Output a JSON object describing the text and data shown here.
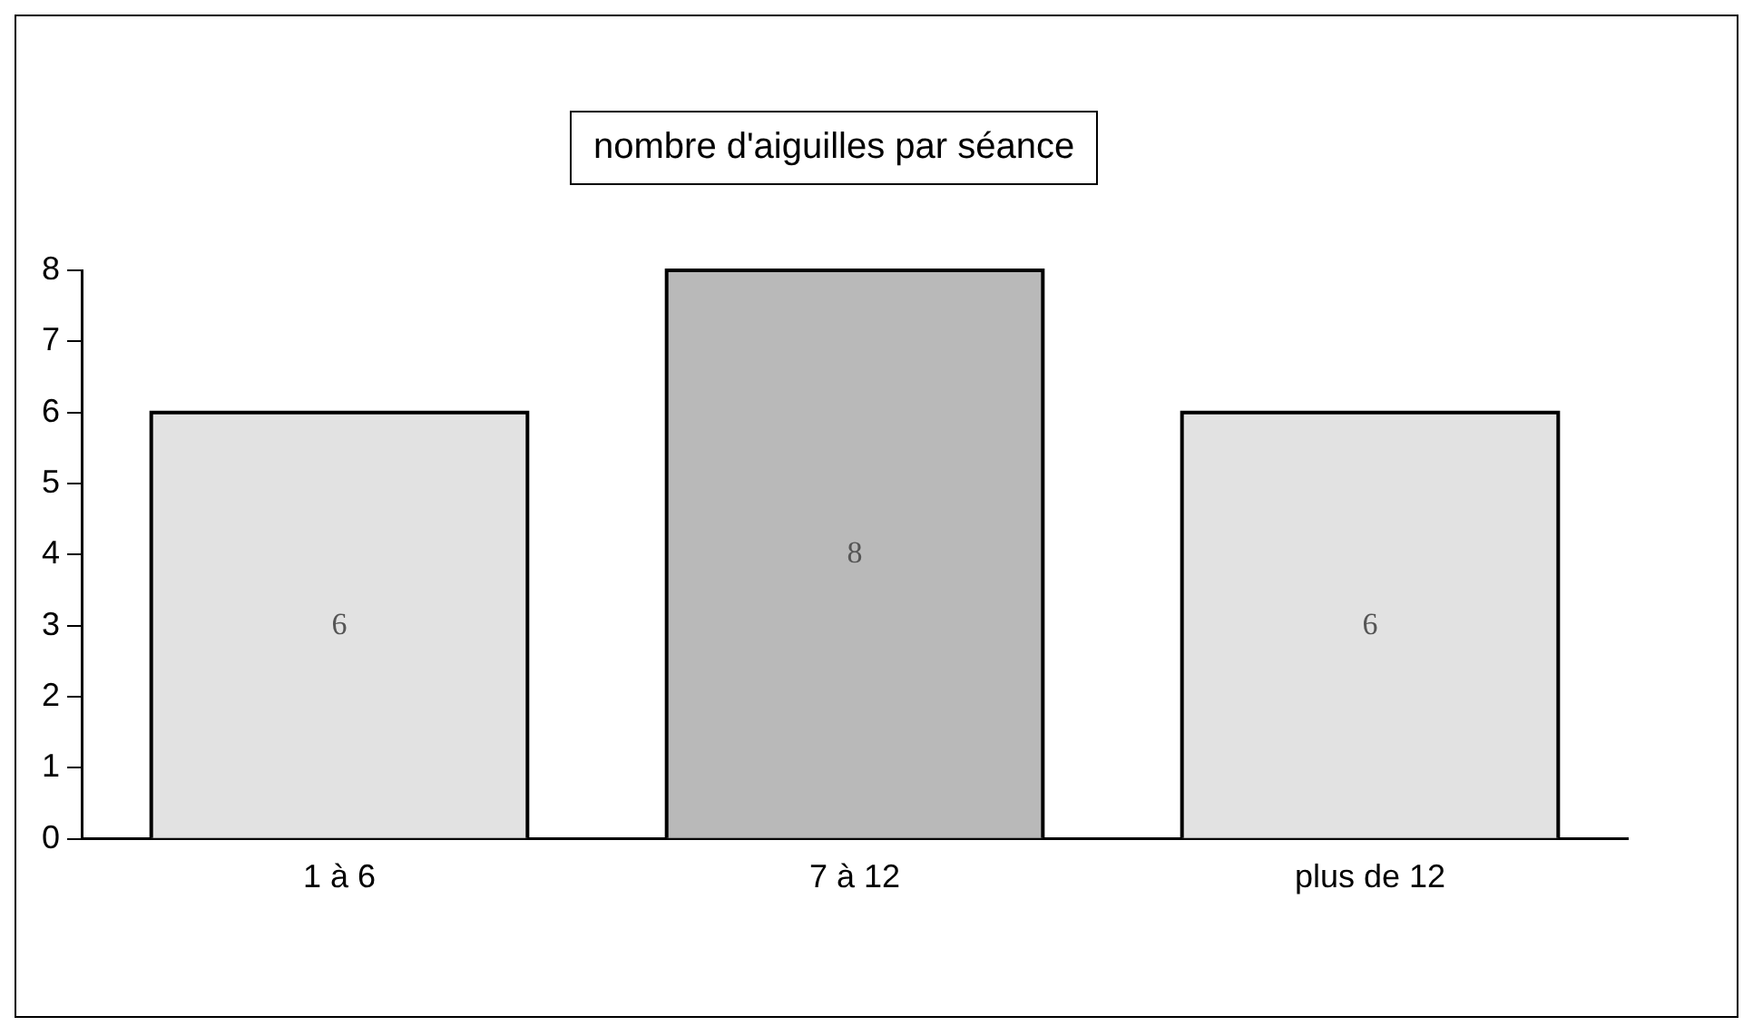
{
  "chart_data": {
    "type": "bar",
    "title": "nombre d'aiguilles par séance",
    "categories": [
      "1 à 6",
      "7 à 12",
      "plus de 12"
    ],
    "values": [
      6,
      8,
      6
    ],
    "colors": [
      "#e2e2e2",
      "#b9b9b9",
      "#e2e2e2"
    ],
    "ylim": [
      0,
      8
    ],
    "yticks": [
      0,
      1,
      2,
      3,
      4,
      5,
      6,
      7,
      8
    ],
    "grid": false,
    "data_labels": true
  }
}
